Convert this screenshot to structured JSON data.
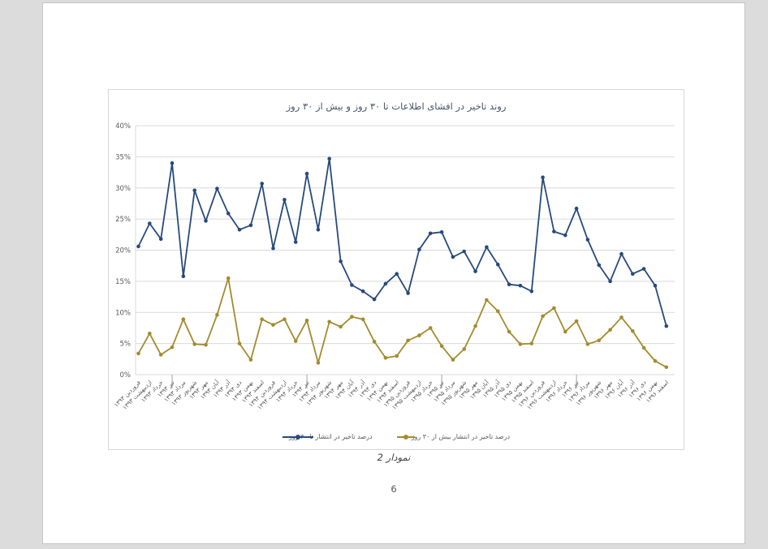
{
  "page": {
    "caption": "نمودار 2",
    "page_number": "6"
  },
  "chart": {
    "title_color": "#44546a",
    "axis_text_color": "#595959",
    "grid_color": "#d9d9d9",
    "tick_color": "#8c8c8c"
  },
  "chart_data": {
    "type": "line",
    "title": "روند تاخیر در افشای اطلاعات تا ۳۰ روز و بیش از ۳۰ روز",
    "xlabel": "",
    "ylabel": "",
    "ylim": [
      0,
      40
    ],
    "y_tick_step": 5,
    "y_tick_labels": [
      "0%",
      "5%",
      "10%",
      "15%",
      "20%",
      "25%",
      "30%",
      "35%",
      "40%"
    ],
    "grid": true,
    "legend_position": "bottom",
    "x_major_tick_indices": [
      3,
      15,
      27,
      39
    ],
    "categories": [
      "فروردین ۱۳۹۳",
      "اردیبهشت ۱۳۹۳",
      "خرداد ۱۳۹۳",
      "تیر ۱۳۹۳",
      "مرداد ۱۳۹۳",
      "شهریور ۱۳۹۳",
      "مهر ۱۳۹۳",
      "آبان ۱۳۹۳",
      "آذر ۱۳۹۳",
      "دی ۱۳۹۳",
      "بهمن ۱۳۹۳",
      "اسفند ۱۳۹۳",
      "فروردین ۱۳۹۴",
      "اردیبهشت ۱۳۹۴",
      "خرداد ۱۳۹۴",
      "تیر ۱۳۹۴",
      "مرداد ۱۳۹۴",
      "شهریور ۱۳۹۴",
      "مهر ۱۳۹۴",
      "آبان ۱۳۹۴",
      "آذر ۱۳۹۴",
      "دی ۱۳۹۴",
      "بهمن ۱۳۹۴",
      "اسفند ۱۳۹۴",
      "فروردین ۱۳۹۵",
      "اردیبهشت ۱۳۹۵",
      "خرداد ۱۳۹۵",
      "تیر ۱۳۹۵",
      "مرداد ۱۳۹۵",
      "شهریور ۱۳۹۵",
      "مهر ۱۳۹۵",
      "آبان ۱۳۹۵",
      "آذر ۱۳۹۵",
      "دی ۱۳۹۵",
      "بهمن ۱۳۹۵",
      "اسفند ۱۳۹۵",
      "فروردین ۱۳۹۶",
      "اردیبهشت ۱۳۹۶",
      "خرداد ۱۳۹۶",
      "تیر ۱۳۹۶",
      "مرداد ۱۳۹۶",
      "شهریور ۱۳۹۶",
      "مهر ۱۳۹۶",
      "آبان ۱۳۹۶",
      "آذر ۱۳۹۶",
      "دی ۱۳۹۶",
      "بهمن ۱۳۹۶",
      "اسفند ۱۳۹۶"
    ],
    "series": [
      {
        "name": "درصد تاخیر در انتشار تا ۳۰ روز",
        "color": "#274a7d",
        "values": [
          20.6,
          24.3,
          21.8,
          34,
          15.8,
          29.6,
          24.7,
          29.9,
          25.9,
          23.3,
          24,
          30.7,
          20.3,
          28.1,
          21.3,
          32.3,
          23.3,
          34.7,
          18.2,
          14.4,
          13.4,
          12.1,
          14.6,
          16.2,
          13.1,
          20.1,
          22.7,
          22.9,
          18.9,
          19.8,
          16.6,
          20.5,
          17.7,
          14.5,
          14.3,
          13.4,
          31.7,
          23,
          22.4,
          26.7,
          21.7,
          17.6,
          15,
          19.4,
          16.2,
          17,
          14.3,
          7.8
        ]
      },
      {
        "name": "درصد تاخیر در انتشار بیش از ۳۰ روز",
        "color": "#a38b2d",
        "values": [
          3.4,
          6.6,
          3.2,
          4.4,
          8.9,
          4.9,
          4.8,
          9.6,
          15.5,
          5,
          2.4,
          8.9,
          8,
          8.9,
          5.4,
          8.7,
          1.9,
          8.5,
          7.7,
          9.3,
          8.9,
          5.3,
          2.7,
          3,
          5.5,
          6.3,
          7.5,
          4.6,
          2.4,
          4.1,
          7.8,
          12,
          10.2,
          6.9,
          4.9,
          5,
          9.4,
          10.7,
          6.9,
          8.6,
          4.9,
          5.5,
          7.2,
          9.2,
          7,
          4.3,
          2.2,
          1.2
        ]
      }
    ]
  }
}
